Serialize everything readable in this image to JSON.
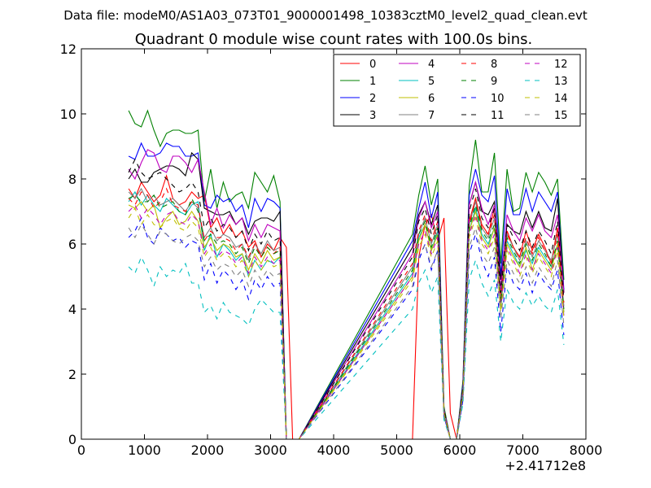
{
  "header": {
    "file_line": "Data file: modeM0/AS1A03_073T01_9000001498_10383cztM0_level2_quad_clean.evt"
  },
  "chart_data": {
    "type": "line",
    "title": "Quadrant 0 module wise count rates with 100.0s bins.",
    "xlabel": "",
    "ylabel": "",
    "x_offset_label": "+2.41712e8",
    "xlim": [
      0,
      8000
    ],
    "ylim": [
      0,
      12
    ],
    "xticks": [
      0,
      1000,
      2000,
      3000,
      4000,
      5000,
      6000,
      7000,
      8000
    ],
    "yticks": [
      0,
      2,
      4,
      6,
      8,
      10,
      12
    ],
    "xtick_labels": [
      "0",
      "1000",
      "2000",
      "3000",
      "4000",
      "5000",
      "6000",
      "7000",
      "8000"
    ],
    "ytick_labels": [
      "0",
      "2",
      "4",
      "6",
      "8",
      "10",
      "12"
    ],
    "legend": "top-right",
    "x": [
      750,
      850,
      950,
      1050,
      1150,
      1250,
      1350,
      1450,
      1550,
      1650,
      1750,
      1850,
      1950,
      2050,
      2150,
      2250,
      2350,
      2450,
      2550,
      2650,
      2750,
      2850,
      2950,
      3050,
      3150,
      3250,
      3350,
      3450,
      5250,
      5350,
      5450,
      5550,
      5650,
      5750,
      5850,
      5950,
      6050,
      6150,
      6250,
      6350,
      6450,
      6550,
      6650,
      6750,
      6850,
      6950,
      7050,
      7150,
      7250,
      7350,
      7450,
      7550,
      7650
    ],
    "series": [
      {
        "name": "0",
        "color": "#ff0000",
        "dash": false,
        "values": [
          7.7,
          7.4,
          7.9,
          7.6,
          7.3,
          7.5,
          8.1,
          7.4,
          7.2,
          7.3,
          7.6,
          7.4,
          7.5,
          6.5,
          6.8,
          6.3,
          6.6,
          6.2,
          6.4,
          5.9,
          6.1,
          5.6,
          6.0,
          5.8,
          6.2,
          5.9,
          0.0,
          0.0,
          0.0,
          5.6,
          6.6,
          6.9,
          6.1,
          6.8,
          0.8,
          0.0,
          1.6,
          6.7,
          7.4,
          6.6,
          6.3,
          7.1,
          4.3,
          6.4,
          5.9,
          5.6,
          6.4,
          5.8,
          6.3,
          5.9,
          5.4,
          6.5,
          4.5
        ]
      },
      {
        "name": "1",
        "color": "#008000",
        "dash": false,
        "values": [
          10.1,
          9.7,
          9.6,
          10.1,
          9.5,
          9.0,
          9.4,
          9.5,
          9.5,
          9.4,
          9.4,
          9.5,
          7.3,
          8.3,
          7.1,
          7.9,
          7.3,
          7.5,
          7.6,
          7.1,
          8.2,
          7.9,
          7.6,
          8.1,
          7.3,
          0.0,
          0.0,
          0.0,
          6.3,
          7.5,
          8.4,
          7.2,
          8.0,
          1.0,
          0.0,
          0.0,
          1.8,
          7.8,
          9.2,
          7.6,
          7.6,
          8.8,
          5.4,
          8.3,
          7.0,
          7.1,
          8.2,
          7.6,
          8.2,
          7.9,
          7.5,
          8.0,
          4.9
        ]
      },
      {
        "name": "2",
        "color": "#0000ff",
        "dash": false,
        "values": [
          8.7,
          8.6,
          9.1,
          8.7,
          8.7,
          8.8,
          9.1,
          9.0,
          9.0,
          8.7,
          8.7,
          8.8,
          7.2,
          7.1,
          7.5,
          7.3,
          7.4,
          7.0,
          7.2,
          6.5,
          7.4,
          7.0,
          7.4,
          7.3,
          7.1,
          0.0,
          0.0,
          0.0,
          6.1,
          7.1,
          7.9,
          6.8,
          7.6,
          0.9,
          0.0,
          0.0,
          1.7,
          7.5,
          8.3,
          7.5,
          7.3,
          8.1,
          5.0,
          7.7,
          6.9,
          6.9,
          7.7,
          7.0,
          7.6,
          7.3,
          7.0,
          7.6,
          4.6
        ]
      },
      {
        "name": "3",
        "color": "#000000",
        "dash": false,
        "values": [
          8.0,
          8.3,
          7.9,
          7.9,
          8.2,
          8.3,
          8.4,
          8.4,
          8.3,
          8.1,
          8.8,
          8.6,
          7.1,
          7.0,
          6.9,
          6.9,
          7.0,
          6.6,
          6.8,
          6.3,
          6.7,
          6.8,
          6.8,
          6.7,
          7.0,
          0.0,
          0.0,
          0.0,
          5.9,
          6.9,
          7.3,
          6.6,
          7.2,
          0.9,
          0.0,
          0.0,
          1.6,
          7.2,
          7.9,
          7.0,
          6.9,
          7.3,
          4.9,
          6.6,
          6.4,
          6.3,
          7.0,
          6.5,
          7.0,
          6.5,
          6.4,
          7.4,
          4.5
        ]
      },
      {
        "name": "4",
        "color": "#bf00bf",
        "dash": false,
        "values": [
          8.3,
          8.0,
          8.5,
          8.9,
          8.8,
          8.3,
          8.2,
          8.7,
          8.7,
          8.5,
          8.2,
          8.6,
          7.6,
          6.6,
          7.1,
          6.5,
          6.9,
          6.6,
          6.8,
          6.1,
          6.6,
          6.2,
          6.6,
          6.5,
          6.4,
          0.0,
          0.0,
          0.0,
          5.7,
          6.8,
          7.3,
          6.5,
          7.0,
          0.9,
          0.0,
          0.0,
          1.6,
          7.2,
          7.9,
          7.1,
          6.6,
          7.2,
          4.6,
          6.9,
          6.4,
          6.1,
          6.8,
          6.4,
          6.9,
          6.4,
          6.2,
          6.9,
          4.5
        ]
      },
      {
        "name": "5",
        "color": "#00bfbf",
        "dash": false,
        "values": [
          7.3,
          7.6,
          7.2,
          7.5,
          7.2,
          7.0,
          7.4,
          7.2,
          7.0,
          6.9,
          7.2,
          7.3,
          5.8,
          6.3,
          5.6,
          6.0,
          5.8,
          5.5,
          5.7,
          5.0,
          5.5,
          5.2,
          5.5,
          5.4,
          5.6,
          0.0,
          0.0,
          0.0,
          5.1,
          6.2,
          6.6,
          5.8,
          6.4,
          0.8,
          0.0,
          0.0,
          1.4,
          6.4,
          7.1,
          6.3,
          6.0,
          6.5,
          4.0,
          6.1,
          5.7,
          5.3,
          5.8,
          5.4,
          5.9,
          5.6,
          5.3,
          6.0,
          3.9
        ]
      },
      {
        "name": "6",
        "color": "#bfbf00",
        "dash": false,
        "values": [
          7.2,
          7.1,
          7.3,
          7.0,
          7.2,
          6.5,
          6.8,
          7.0,
          6.6,
          6.7,
          7.0,
          6.7,
          5.9,
          6.2,
          5.8,
          6.0,
          5.9,
          5.6,
          5.7,
          5.2,
          5.7,
          5.4,
          5.8,
          5.5,
          5.6,
          0.0,
          0.0,
          0.0,
          5.0,
          6.1,
          6.6,
          5.8,
          6.3,
          0.8,
          0.0,
          0.0,
          1.4,
          6.4,
          7.0,
          6.2,
          5.9,
          6.5,
          4.1,
          6.0,
          5.6,
          5.3,
          5.9,
          5.2,
          5.8,
          5.5,
          5.2,
          6.0,
          3.9
        ]
      },
      {
        "name": "7",
        "color": "#808080",
        "dash": false,
        "values": [
          7.6,
          7.4,
          7.7,
          7.3,
          7.5,
          7.2,
          7.3,
          7.4,
          7.2,
          7.0,
          7.3,
          7.1,
          6.2,
          6.5,
          6.1,
          6.3,
          6.2,
          5.9,
          6.0,
          5.5,
          6.0,
          5.7,
          6.1,
          5.8,
          5.9,
          0.0,
          0.0,
          0.0,
          5.3,
          6.3,
          6.8,
          6.0,
          6.6,
          0.8,
          0.0,
          0.0,
          1.5,
          6.6,
          7.3,
          6.5,
          6.2,
          6.8,
          4.2,
          6.3,
          5.9,
          5.5,
          6.1,
          5.6,
          6.1,
          5.8,
          5.5,
          6.3,
          4.1
        ]
      },
      {
        "name": "8",
        "color": "#ff0000",
        "dash": true,
        "values": [
          7.4,
          7.2,
          7.6,
          7.5,
          7.1,
          7.3,
          7.7,
          7.2,
          7.1,
          7.0,
          7.3,
          7.2,
          6.1,
          6.4,
          6.2,
          6.2,
          6.1,
          5.8,
          6.0,
          5.6,
          6.0,
          5.6,
          5.9,
          5.7,
          5.9,
          0.0,
          0.0,
          0.0,
          5.4,
          6.4,
          6.9,
          6.1,
          6.7,
          0.8,
          0.0,
          0.0,
          1.5,
          6.6,
          7.4,
          6.5,
          6.3,
          6.9,
          4.3,
          6.3,
          5.9,
          5.6,
          6.2,
          5.7,
          6.2,
          5.8,
          5.4,
          6.3,
          4.2
        ]
      },
      {
        "name": "9",
        "color": "#008000",
        "dash": true,
        "values": [
          7.4,
          7.5,
          7.3,
          7.3,
          7.5,
          7.1,
          7.2,
          7.3,
          7.0,
          6.9,
          7.4,
          7.0,
          6.1,
          6.3,
          6.0,
          6.1,
          6.0,
          5.7,
          5.9,
          5.4,
          5.9,
          5.6,
          5.9,
          5.7,
          5.8,
          0.0,
          0.0,
          0.0,
          5.2,
          6.3,
          6.7,
          5.9,
          6.5,
          0.8,
          0.0,
          0.0,
          1.5,
          6.5,
          7.2,
          6.4,
          6.1,
          6.6,
          4.2,
          6.2,
          5.8,
          5.4,
          6.0,
          5.5,
          6.0,
          5.7,
          5.3,
          6.1,
          4.0
        ]
      },
      {
        "name": "10",
        "color": "#0000ff",
        "dash": true,
        "values": [
          6.2,
          6.4,
          6.8,
          6.2,
          6.0,
          6.5,
          6.3,
          6.1,
          6.2,
          5.9,
          6.1,
          6.0,
          4.9,
          5.4,
          4.8,
          5.2,
          5.0,
          4.6,
          4.9,
          4.3,
          4.9,
          4.6,
          5.0,
          4.7,
          4.8,
          0.0,
          0.0,
          0.0,
          4.6,
          5.5,
          6.0,
          5.2,
          5.8,
          0.7,
          0.0,
          0.0,
          1.2,
          5.7,
          6.3,
          5.5,
          5.0,
          5.6,
          3.3,
          5.3,
          4.8,
          4.6,
          5.1,
          4.5,
          5.1,
          4.8,
          4.6,
          5.2,
          3.2
        ]
      },
      {
        "name": "11",
        "color": "#000000",
        "dash": true,
        "values": [
          8.2,
          8.6,
          8.2,
          8.0,
          8.1,
          8.2,
          8.0,
          7.8,
          7.6,
          7.7,
          7.9,
          7.6,
          6.5,
          6.8,
          6.4,
          6.6,
          6.5,
          6.2,
          6.4,
          5.8,
          6.3,
          6.0,
          6.4,
          6.1,
          6.2,
          0.0,
          0.0,
          0.0,
          5.6,
          6.7,
          7.1,
          6.3,
          6.9,
          0.9,
          0.0,
          0.0,
          1.6,
          7.0,
          7.7,
          6.8,
          6.5,
          7.1,
          4.5,
          6.6,
          6.2,
          5.8,
          6.4,
          5.9,
          6.4,
          6.1,
          5.7,
          6.7,
          4.3
        ]
      },
      {
        "name": "12",
        "color": "#bf00bf",
        "dash": true,
        "values": [
          7.0,
          7.2,
          6.8,
          7.1,
          6.9,
          6.6,
          6.9,
          7.0,
          6.7,
          6.6,
          6.9,
          6.7,
          5.7,
          6.0,
          5.6,
          5.8,
          5.7,
          5.4,
          5.6,
          5.1,
          5.6,
          5.3,
          5.6,
          5.4,
          5.5,
          0.0,
          0.0,
          0.0,
          5.0,
          6.0,
          6.4,
          5.7,
          6.2,
          0.8,
          0.0,
          0.0,
          1.4,
          6.3,
          6.9,
          6.1,
          5.8,
          6.3,
          4.0,
          5.9,
          5.5,
          5.1,
          5.7,
          5.2,
          5.7,
          5.4,
          5.1,
          5.9,
          3.8
        ]
      },
      {
        "name": "13",
        "color": "#00bfbf",
        "dash": true,
        "values": [
          5.3,
          5.1,
          5.6,
          5.2,
          4.7,
          5.3,
          5.0,
          5.2,
          5.1,
          5.4,
          4.8,
          4.8,
          3.9,
          4.1,
          3.7,
          4.2,
          3.9,
          3.8,
          3.7,
          3.5,
          4.0,
          4.3,
          4.1,
          3.9,
          3.9,
          0.0,
          0.0,
          0.0,
          4.0,
          4.8,
          5.2,
          4.5,
          5.0,
          0.6,
          0.0,
          0.0,
          1.1,
          4.9,
          5.5,
          4.8,
          4.4,
          4.9,
          3.0,
          4.6,
          4.2,
          4.0,
          4.5,
          4.1,
          4.4,
          4.1,
          3.9,
          4.6,
          2.9
        ]
      },
      {
        "name": "14",
        "color": "#bfbf00",
        "dash": true,
        "values": [
          6.8,
          7.1,
          6.6,
          6.9,
          6.6,
          6.5,
          6.7,
          6.8,
          6.5,
          6.4,
          6.7,
          6.5,
          5.6,
          5.9,
          5.5,
          5.7,
          5.6,
          5.3,
          5.5,
          5.0,
          5.5,
          5.2,
          5.5,
          5.3,
          5.4,
          0.0,
          0.0,
          0.0,
          4.9,
          5.9,
          6.3,
          5.6,
          6.1,
          0.8,
          0.0,
          0.0,
          1.4,
          6.2,
          6.8,
          6.0,
          5.7,
          6.2,
          3.9,
          5.8,
          5.4,
          5.0,
          5.6,
          5.1,
          5.6,
          5.3,
          5.0,
          5.8,
          3.7
        ]
      },
      {
        "name": "15",
        "color": "#808080",
        "dash": true,
        "values": [
          6.5,
          6.2,
          6.6,
          6.3,
          6.0,
          6.4,
          6.3,
          6.1,
          6.0,
          6.2,
          6.3,
          6.1,
          5.3,
          5.6,
          5.2,
          5.4,
          5.3,
          5.0,
          5.2,
          4.7,
          5.2,
          4.9,
          5.2,
          5.0,
          5.1,
          0.0,
          0.0,
          0.0,
          4.7,
          5.6,
          6.0,
          5.3,
          5.8,
          0.7,
          0.0,
          0.0,
          1.3,
          5.9,
          6.5,
          5.7,
          5.4,
          5.9,
          3.7,
          5.5,
          5.1,
          4.8,
          5.3,
          4.8,
          5.3,
          5.0,
          4.7,
          5.5,
          3.5
        ]
      }
    ]
  }
}
